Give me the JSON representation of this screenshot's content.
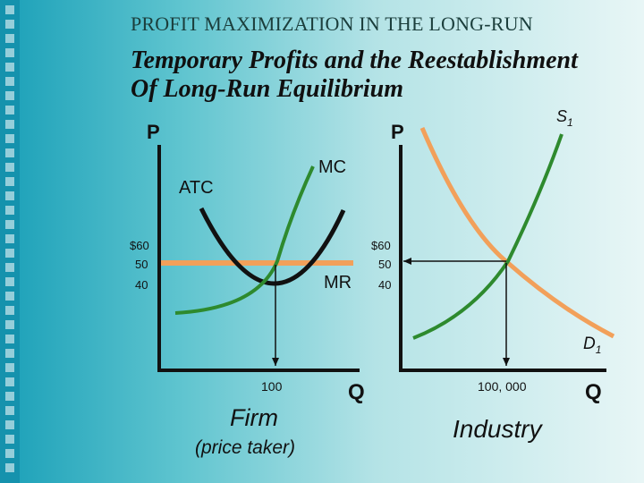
{
  "title": "PROFIT MAXIMIZATION IN THE LONG-RUN",
  "subtitle_line1": "Temporary Profits and the Reestablishment",
  "subtitle_line2": "Of Long-Run Equilibrium",
  "firm": {
    "axis_y": "P",
    "axis_x": "Q",
    "curve_atc": "ATC",
    "curve_mc": "MC",
    "curve_mr": "MR",
    "price_ticks": [
      "$60",
      "50",
      "40"
    ],
    "quantity_tick": "100",
    "caption": "Firm",
    "caption_sub": "(price taker)"
  },
  "industry": {
    "axis_y": "P",
    "axis_x": "Q",
    "supply_base": "S",
    "supply_sub": "1",
    "demand_base": "D",
    "demand_sub": "1",
    "price_ticks": [
      "$60",
      "50",
      "40"
    ],
    "quantity_tick": "100, 000",
    "caption": "Industry"
  },
  "colors": {
    "atc": "#111111",
    "mc": "#2e8a2e",
    "mr": "#f2a05a",
    "supply": "#f2a05a",
    "demand": "#2e8a2e",
    "axis": "#111111"
  }
}
